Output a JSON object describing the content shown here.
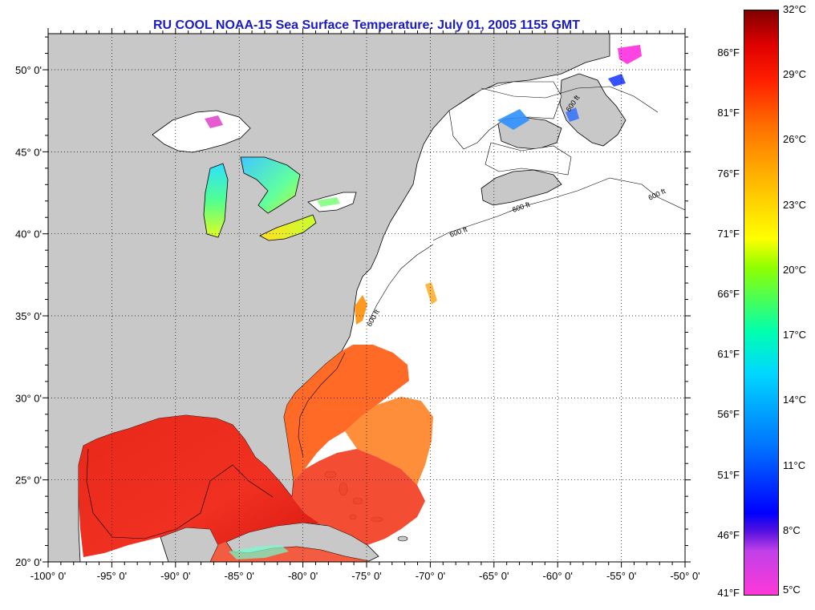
{
  "title": "RU COOL  NOAA-15  Sea Surface Temperature:  July 01, 2005 1155 GMT",
  "map": {
    "lon_ticks": [
      {
        "lon": -100,
        "label": "-100° 0'"
      },
      {
        "lon": -95,
        "label": "-95° 0'"
      },
      {
        "lon": -90,
        "label": "-90° 0'"
      },
      {
        "lon": -85,
        "label": "-85° 0'"
      },
      {
        "lon": -80,
        "label": "-80° 0'"
      },
      {
        "lon": -75,
        "label": "-75° 0'"
      },
      {
        "lon": -70,
        "label": "-70° 0'"
      },
      {
        "lon": -65,
        "label": "-65° 0'"
      },
      {
        "lon": -60,
        "label": "-60° 0'"
      },
      {
        "lon": -55,
        "label": "-55° 0'"
      },
      {
        "lon": -50,
        "label": "-50° 0'"
      }
    ],
    "lat_ticks": [
      {
        "lat": 20,
        "label": "20° 0'"
      },
      {
        "lat": 25,
        "label": "25° 0'"
      },
      {
        "lat": 30,
        "label": "30° 0'"
      },
      {
        "lat": 35,
        "label": "35° 0'"
      },
      {
        "lat": 40,
        "label": "40° 0'"
      },
      {
        "lat": 45,
        "label": "45° 0'"
      },
      {
        "lat": 50,
        "label": "50° 0'"
      }
    ],
    "isobath_labels": [
      "600 ft",
      "600 ft",
      "600 ft",
      "600 ft",
      "600 ft"
    ],
    "colors": {
      "land": "#c8c8c8",
      "ocean_nodata": "#ffffff",
      "gulf": "#ee2a18",
      "gulf_stream": "#ff6a10"
    }
  },
  "colorbar": {
    "celsius": [
      "32°C",
      "29°C",
      "26°C",
      "23°C",
      "20°C",
      "17°C",
      "14°C",
      "11°C",
      "8°C",
      "5°C"
    ],
    "fahrenheit": [
      "86°F",
      "81°F",
      "76°F",
      "71°F",
      "66°F",
      "61°F",
      "56°F",
      "51°F",
      "46°F",
      "41°F"
    ]
  }
}
